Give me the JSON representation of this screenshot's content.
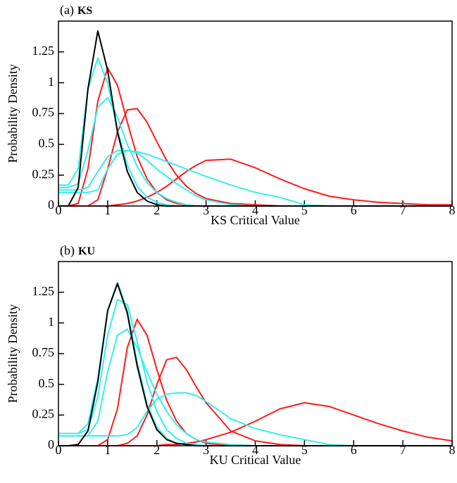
{
  "chart_data": [
    {
      "type": "line",
      "panel_label": "(a)",
      "title": "KS",
      "xlabel": "KS Critical Value",
      "ylabel": "Probability Density",
      "x": [
        0,
        0.2,
        0.4,
        0.6,
        0.8,
        1.0,
        1.2,
        1.4,
        1.6,
        1.8,
        2.0,
        2.2,
        2.4,
        2.6,
        2.8,
        3.0,
        3.5,
        4,
        4.5,
        5,
        5.5,
        6,
        6.5,
        7,
        7.5,
        8
      ],
      "xlim": [
        0,
        8
      ],
      "xticks": [
        0,
        1,
        2,
        3,
        4,
        5,
        6,
        7,
        8
      ],
      "ylim": [
        0,
        1.5
      ],
      "yticks": [
        0,
        0.25,
        0.5,
        0.75,
        1,
        1.25
      ],
      "series": [
        {
          "color": "#ff1a1a",
          "values": [
            0,
            0,
            0.02,
            0.3,
            0.85,
            1.12,
            0.98,
            0.68,
            0.4,
            0.22,
            0.11,
            0.05,
            0.02,
            0.01,
            0,
            0,
            0,
            0,
            0,
            0,
            0,
            0,
            0,
            0,
            0,
            0
          ]
        },
        {
          "color": "#ff1a1a",
          "values": [
            0,
            0,
            0,
            0,
            0.05,
            0.3,
            0.6,
            0.78,
            0.79,
            0.68,
            0.52,
            0.37,
            0.25,
            0.16,
            0.1,
            0.06,
            0.02,
            0.01,
            0,
            0,
            0,
            0,
            0,
            0,
            0,
            0
          ]
        },
        {
          "color": "#ff1a1a",
          "values": [
            0,
            0,
            0,
            0,
            0,
            0,
            0.01,
            0.02,
            0.04,
            0.07,
            0.11,
            0.16,
            0.22,
            0.28,
            0.33,
            0.37,
            0.38,
            0.31,
            0.22,
            0.14,
            0.08,
            0.05,
            0.03,
            0.02,
            0.01,
            0.01
          ]
        },
        {
          "color": "#33eeee",
          "values": [
            0.11,
            0.11,
            0.11,
            0.11,
            0.13,
            0.3,
            0.42,
            0.45,
            0.44,
            0.42,
            0.39,
            0.36,
            0.33,
            0.3,
            0.27,
            0.24,
            0.17,
            0.11,
            0.07,
            0.01,
            0,
            0,
            0,
            0,
            0,
            0
          ]
        },
        {
          "color": "#33eeee",
          "values": [
            0.13,
            0.13,
            0.13,
            0.15,
            0.28,
            0.4,
            0.45,
            0.45,
            0.43,
            0.37,
            0.3,
            0.24,
            0.18,
            0.13,
            0.08,
            0.05,
            0.01,
            0,
            0,
            0,
            0,
            0,
            0,
            0,
            0,
            0
          ]
        },
        {
          "color": "#33eeee",
          "values": [
            0.15,
            0.15,
            0.18,
            0.45,
            0.8,
            0.88,
            0.72,
            0.5,
            0.32,
            0.19,
            0.11,
            0.06,
            0.03,
            0.01,
            0,
            0,
            0,
            0,
            0,
            0,
            0,
            0,
            0,
            0,
            0,
            0
          ]
        },
        {
          "color": "#33eeee",
          "values": [
            0.17,
            0.17,
            0.3,
            0.95,
            1.2,
            1.0,
            0.62,
            0.33,
            0.16,
            0.07,
            0.03,
            0.01,
            0,
            0,
            0,
            0,
            0,
            0,
            0,
            0,
            0,
            0,
            0,
            0,
            0,
            0
          ]
        },
        {
          "color": "#000000",
          "values": [
            0,
            0,
            0.15,
            0.95,
            1.42,
            1.1,
            0.6,
            0.28,
            0.11,
            0.04,
            0.01,
            0,
            0,
            0,
            0,
            0,
            0,
            0,
            0,
            0,
            0,
            0,
            0,
            0,
            0,
            0
          ]
        }
      ]
    },
    {
      "type": "line",
      "panel_label": "(b)",
      "title": "KU",
      "xlabel": "KU Critical Value",
      "ylabel": "Probability Density",
      "x": [
        0,
        0.2,
        0.4,
        0.6,
        0.8,
        1.0,
        1.2,
        1.4,
        1.6,
        1.8,
        2.0,
        2.2,
        2.4,
        2.6,
        2.8,
        3.0,
        3.5,
        4,
        4.5,
        5,
        5.5,
        6,
        6.5,
        7,
        7.5,
        8
      ],
      "xlim": [
        0,
        8
      ],
      "xticks": [
        0,
        1,
        2,
        3,
        4,
        5,
        6,
        7,
        8
      ],
      "ylim": [
        0,
        1.5
      ],
      "yticks": [
        0,
        0.25,
        0.5,
        0.75,
        1,
        1.25
      ],
      "series": [
        {
          "color": "#ff1a1a",
          "values": [
            0,
            0,
            0,
            0,
            0,
            0.05,
            0.3,
            0.8,
            1.03,
            0.9,
            0.62,
            0.37,
            0.2,
            0.1,
            0.05,
            0.02,
            0,
            0,
            0,
            0,
            0,
            0,
            0,
            0,
            0,
            0
          ]
        },
        {
          "color": "#ff1a1a",
          "values": [
            0,
            0,
            0,
            0,
            0,
            0,
            0,
            0.02,
            0.08,
            0.25,
            0.5,
            0.7,
            0.72,
            0.62,
            0.48,
            0.35,
            0.12,
            0.04,
            0.01,
            0,
            0,
            0,
            0,
            0,
            0,
            0
          ]
        },
        {
          "color": "#ff1a1a",
          "values": [
            0,
            0,
            0,
            0,
            0,
            0,
            0,
            0,
            0,
            0,
            0,
            0.01,
            0.01,
            0.02,
            0.03,
            0.05,
            0.11,
            0.2,
            0.3,
            0.35,
            0.32,
            0.25,
            0.18,
            0.12,
            0.07,
            0.04
          ]
        },
        {
          "color": "#33eeee",
          "values": [
            0.08,
            0.08,
            0.08,
            0.08,
            0.08,
            0.08,
            0.08,
            0.09,
            0.15,
            0.28,
            0.38,
            0.42,
            0.43,
            0.43,
            0.41,
            0.36,
            0.22,
            0.14,
            0.09,
            0.05,
            0.01,
            0,
            0,
            0,
            0,
            0
          ]
        },
        {
          "color": "#33eeee",
          "values": [
            0.08,
            0.08,
            0.08,
            0.08,
            0.2,
            0.6,
            0.9,
            0.95,
            0.8,
            0.6,
            0.42,
            0.28,
            0.17,
            0.1,
            0.05,
            0.03,
            0.01,
            0,
            0,
            0,
            0,
            0,
            0,
            0,
            0,
            0
          ]
        },
        {
          "color": "#33eeee",
          "values": [
            0.1,
            0.1,
            0.1,
            0.13,
            0.4,
            0.9,
            1.19,
            1.15,
            0.85,
            0.52,
            0.28,
            0.13,
            0.06,
            0.02,
            0.01,
            0,
            0,
            0,
            0,
            0,
            0,
            0,
            0,
            0,
            0,
            0
          ]
        },
        {
          "color": "#33eeee",
          "values": [
            0.1,
            0.1,
            0.1,
            0.18,
            0.55,
            1.1,
            1.33,
            1.1,
            0.68,
            0.34,
            0.15,
            0.06,
            0.02,
            0.01,
            0,
            0,
            0,
            0,
            0,
            0,
            0,
            0,
            0,
            0,
            0,
            0
          ]
        },
        {
          "color": "#000000",
          "values": [
            0,
            0,
            0.01,
            0.12,
            0.52,
            1.1,
            1.32,
            1.08,
            0.65,
            0.32,
            0.13,
            0.05,
            0.02,
            0.01,
            0,
            0,
            0,
            0,
            0,
            0,
            0,
            0,
            0,
            0,
            0,
            0
          ]
        }
      ]
    }
  ]
}
